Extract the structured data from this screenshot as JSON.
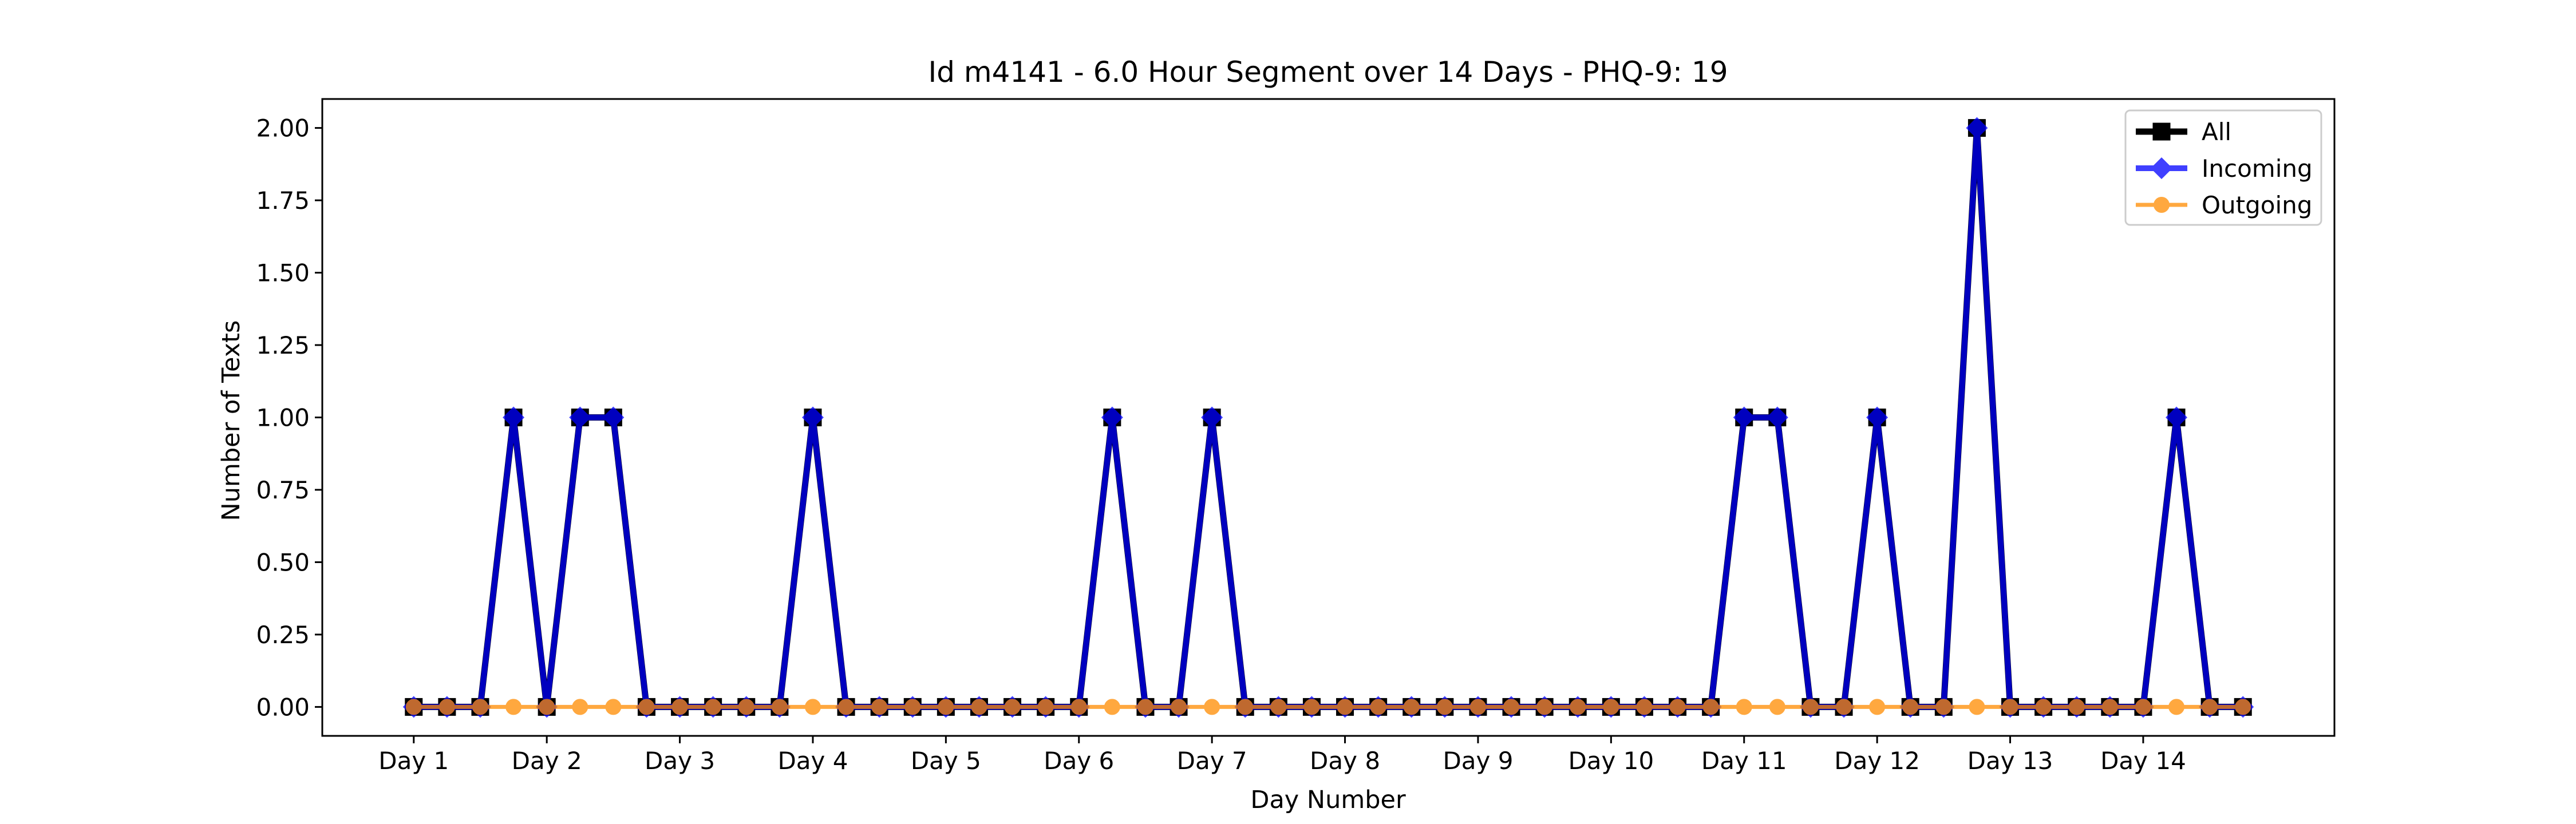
{
  "chart_data": {
    "type": "line",
    "title": "Id m4141 - 6.0 Hour Segment over 14 Days - PHQ-9: 19",
    "xlabel": "Day Number",
    "ylabel": "Number of Texts",
    "ylim": [
      -0.1,
      2.1
    ],
    "yticks": [
      0.0,
      0.25,
      0.5,
      0.75,
      1.0,
      1.25,
      1.5,
      1.75,
      2.0
    ],
    "ytick_labels": [
      "0.00",
      "0.25",
      "0.50",
      "0.75",
      "1.00",
      "1.25",
      "1.50",
      "1.75",
      "2.00"
    ],
    "xticks": [
      0,
      4,
      8,
      12,
      16,
      20,
      24,
      28,
      32,
      36,
      40,
      44,
      48,
      52
    ],
    "xtick_labels": [
      "Day 1",
      "Day 2",
      "Day 3",
      "Day 4",
      "Day 5",
      "Day 6",
      "Day 7",
      "Day 8",
      "Day 9",
      "Day 10",
      "Day 11",
      "Day 12",
      "Day 13",
      "Day 14"
    ],
    "x": [
      0,
      1,
      2,
      3,
      4,
      5,
      6,
      7,
      8,
      9,
      10,
      11,
      12,
      13,
      14,
      15,
      16,
      17,
      18,
      19,
      20,
      21,
      22,
      23,
      24,
      25,
      26,
      27,
      28,
      29,
      30,
      31,
      32,
      33,
      34,
      35,
      36,
      37,
      38,
      39,
      40,
      41,
      42,
      43,
      44,
      45,
      46,
      47,
      48,
      49,
      50,
      51,
      52,
      53,
      54,
      55
    ],
    "legend_position": "top-right",
    "grid": false,
    "series": [
      {
        "name": "All",
        "color": "#000000",
        "marker": "square",
        "values": [
          0,
          0,
          0,
          1,
          0,
          1,
          1,
          0,
          0,
          0,
          0,
          0,
          1,
          0,
          0,
          0,
          0,
          0,
          0,
          0,
          0,
          1,
          0,
          0,
          1,
          0,
          0,
          0,
          0,
          0,
          0,
          0,
          0,
          0,
          0,
          0,
          0,
          0,
          0,
          0,
          1,
          1,
          0,
          0,
          1,
          0,
          0,
          2,
          0,
          0,
          0,
          0,
          0,
          1,
          0,
          0
        ]
      },
      {
        "name": "Incoming",
        "color": "#0000ff",
        "marker": "diamond",
        "values": [
          0,
          0,
          0,
          1,
          0,
          1,
          1,
          0,
          0,
          0,
          0,
          0,
          1,
          0,
          0,
          0,
          0,
          0,
          0,
          0,
          0,
          1,
          0,
          0,
          1,
          0,
          0,
          0,
          0,
          0,
          0,
          0,
          0,
          0,
          0,
          0,
          0,
          0,
          0,
          0,
          1,
          1,
          0,
          0,
          1,
          0,
          0,
          2,
          0,
          0,
          0,
          0,
          0,
          1,
          0,
          0
        ]
      },
      {
        "name": "Outgoing",
        "color": "#ff8c00",
        "marker": "circle",
        "values": [
          0,
          0,
          0,
          0,
          0,
          0,
          0,
          0,
          0,
          0,
          0,
          0,
          0,
          0,
          0,
          0,
          0,
          0,
          0,
          0,
          0,
          0,
          0,
          0,
          0,
          0,
          0,
          0,
          0,
          0,
          0,
          0,
          0,
          0,
          0,
          0,
          0,
          0,
          0,
          0,
          0,
          0,
          0,
          0,
          0,
          0,
          0,
          0,
          0,
          0,
          0,
          0,
          0,
          0,
          0,
          0
        ]
      }
    ]
  }
}
